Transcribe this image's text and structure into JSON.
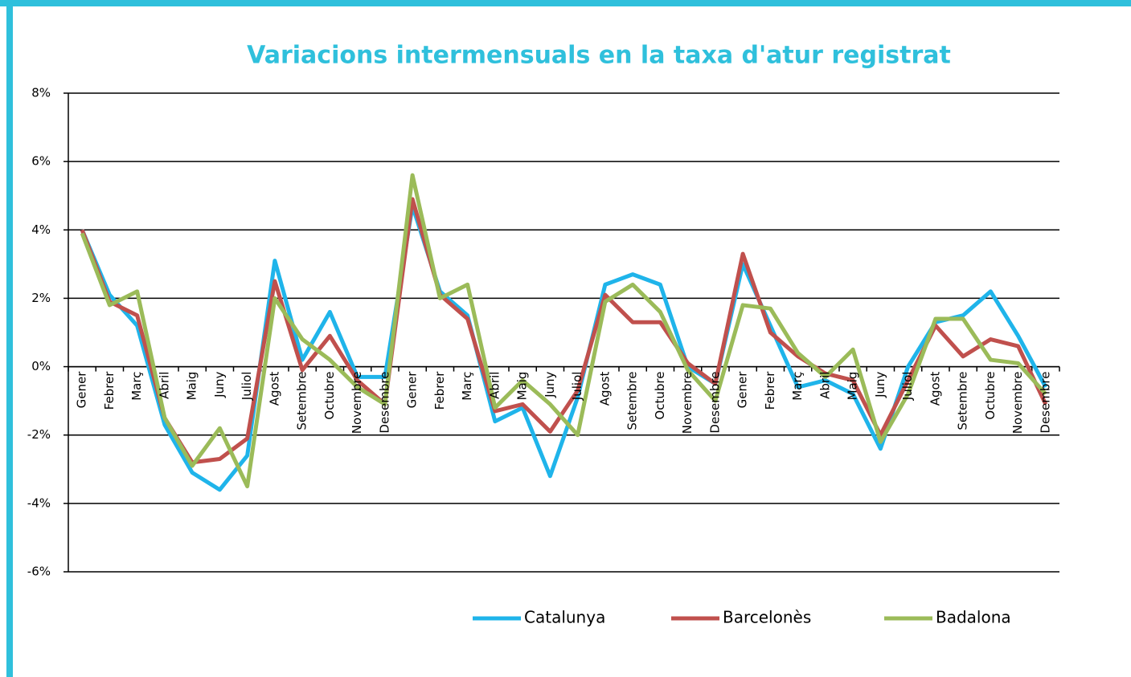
{
  "chart_data": {
    "type": "line",
    "title": "Variacions intermensuals  en la taxa d'atur  registrat",
    "categories": [
      "Gener",
      "Febrer",
      "Març",
      "Abril",
      "Maig",
      "Juny",
      "Juliol",
      "Agost",
      "Setembre",
      "Octubre",
      "Novembre",
      "Desembre",
      "Gener",
      "Febrer",
      "Març",
      "Abril",
      "Maig",
      "Juny",
      "Juliol",
      "Agost",
      "Setembre",
      "Octubre",
      "Novembre",
      "Desembre",
      "Gener",
      "Febrer",
      "Març",
      "Abril",
      "Maig",
      "Juny",
      "Juliol",
      "Agost",
      "Setembre",
      "Octubre",
      "Novembre",
      "Desembre"
    ],
    "series": [
      {
        "name": "Catalunya",
        "color": "#1fb4ea",
        "values": [
          4.0,
          2.1,
          1.2,
          -1.7,
          -3.1,
          -3.6,
          -2.6,
          3.1,
          0.2,
          1.6,
          -0.3,
          -0.3,
          4.7,
          2.2,
          1.5,
          -1.6,
          -1.2,
          -3.2,
          -0.9,
          2.4,
          2.7,
          2.4,
          0.0,
          -0.5,
          3.0,
          1.2,
          -0.6,
          -0.4,
          -0.8,
          -2.4,
          0.0,
          1.3,
          1.5,
          2.2,
          0.9,
          -0.6
        ]
      },
      {
        "name": "Barcelonès",
        "color": "#c0504d",
        "values": [
          4.0,
          1.9,
          1.5,
          -1.5,
          -2.8,
          -2.7,
          -2.1,
          2.5,
          -0.1,
          0.9,
          -0.4,
          -1.1,
          4.9,
          2.1,
          1.4,
          -1.3,
          -1.1,
          -1.9,
          -0.7,
          2.1,
          1.3,
          1.3,
          0.1,
          -0.5,
          3.3,
          1.0,
          0.3,
          -0.2,
          -0.4,
          -2.0,
          -0.4,
          1.2,
          0.3,
          0.8,
          0.6,
          -1.1
        ]
      },
      {
        "name": "Badalona",
        "color": "#9bbb59",
        "values": [
          3.9,
          1.8,
          2.2,
          -1.5,
          -2.9,
          -1.8,
          -3.5,
          2.0,
          0.8,
          0.2,
          -0.6,
          -1.1,
          5.6,
          2.0,
          2.4,
          -1.2,
          -0.4,
          -1.1,
          -2.0,
          1.9,
          2.4,
          1.6,
          -0.1,
          -1.0,
          1.8,
          1.7,
          0.4,
          -0.3,
          0.5,
          -2.2,
          -0.8,
          1.4,
          1.4,
          0.2,
          0.1,
          -0.8
        ]
      }
    ],
    "ylim": [
      -6,
      8
    ],
    "yticks": [
      {
        "value": -6,
        "label": "-6%"
      },
      {
        "value": -4,
        "label": "-4%"
      },
      {
        "value": -2,
        "label": "-2%"
      },
      {
        "value": 0,
        "label": "0%"
      },
      {
        "value": 2,
        "label": "2%"
      },
      {
        "value": 4,
        "label": "4%"
      },
      {
        "value": 6,
        "label": "6%"
      },
      {
        "value": 8,
        "label": "8%"
      }
    ],
    "grid": true,
    "legend": "bottom"
  }
}
